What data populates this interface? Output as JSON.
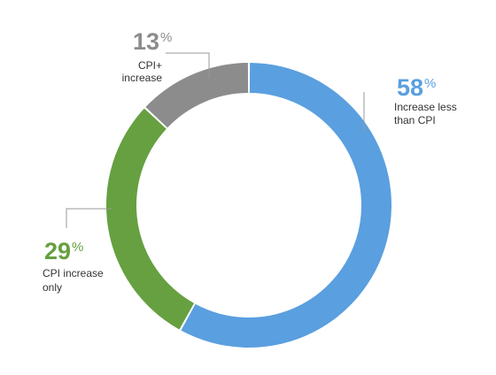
{
  "chart_data": {
    "type": "pie",
    "donut": true,
    "title": "",
    "legend": "none",
    "slices": [
      {
        "value": 58,
        "value_label": "58",
        "unit": "%",
        "label_lines": [
          "Increase less",
          "than CPI"
        ],
        "color": "#5a9fdf"
      },
      {
        "value": 29,
        "value_label": "29",
        "unit": "%",
        "label_lines": [
          "CPI increase",
          "only"
        ],
        "color": "#66a040"
      },
      {
        "value": 13,
        "value_label": "13",
        "unit": "%",
        "label_lines": [
          "CPI+",
          "increase"
        ],
        "color": "#8c8c8c"
      }
    ],
    "start_angle_deg": 0,
    "direction": "clockwise",
    "leader_color": "#999999"
  }
}
